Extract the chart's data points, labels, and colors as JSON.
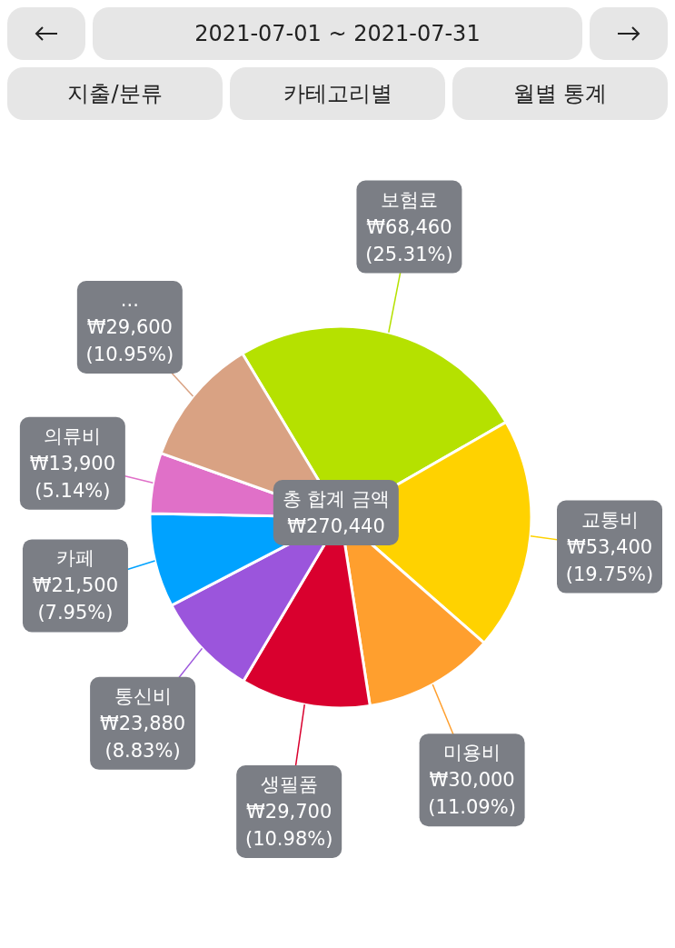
{
  "chart_data": {
    "type": "pie",
    "title": "2021-07-01 ~ 2021-07-31",
    "annotations": [
      "지출/분류",
      "카테고리별",
      "월별 통계",
      "총 합계 금액",
      "₩270,440"
    ],
    "categories": [
      "보험료",
      "교통비",
      "미용비",
      "생필품",
      "통신비",
      "카페",
      "의류비",
      "..."
    ],
    "values": [
      68460,
      53400,
      30000,
      29700,
      23880,
      21500,
      13900,
      29600
    ],
    "value_labels": [
      "₩68,460 (25.31%)",
      "₩53,400 (19.75%)",
      "₩30,000 (11.09%)",
      "₩29,700 (10.98%)",
      "₩23,880 (8.83%)",
      "₩21,500 (7.95%)",
      "₩13,900 (5.14%)",
      "₩29,600 (10.95%)"
    ],
    "colors": [
      "#b5e100",
      "#ffd200",
      "#ff9f2e",
      "#d9002e",
      "#9b55dc",
      "#00a2ff",
      "#e070c8",
      "#d9a283"
    ]
  }
}
